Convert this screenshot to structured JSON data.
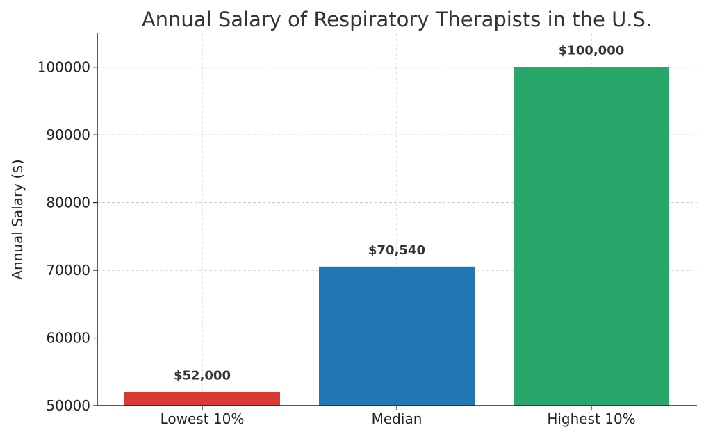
{
  "chart_data": {
    "type": "bar",
    "title": "Annual Salary of Respiratory Therapists in the U.S.",
    "xlabel": "",
    "ylabel": "Annual Salary ($)",
    "categories": [
      "Lowest 10%",
      "Median",
      "Highest 10%"
    ],
    "values": [
      52000,
      70540,
      100000
    ],
    "data_labels": [
      "$52,000",
      "$70,540",
      "$100,000"
    ],
    "colors": [
      "#d83a34",
      "#2077b4",
      "#29a66a"
    ],
    "ylim": [
      50000,
      105000
    ],
    "yticks": [
      50000,
      60000,
      70000,
      80000,
      90000,
      100000
    ],
    "ytick_labels": [
      "50000",
      "60000",
      "70000",
      "80000",
      "90000",
      "100000"
    ],
    "grid": true,
    "grid_style": "dashed"
  }
}
